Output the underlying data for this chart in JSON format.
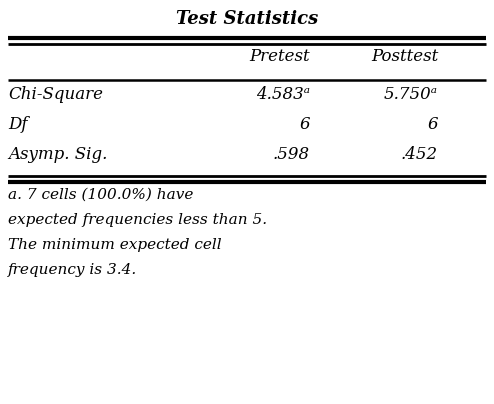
{
  "title": "Test Statistics",
  "col_headers": [
    "",
    "Pretest",
    "Posttest"
  ],
  "rows": [
    [
      "Chi-Square",
      "4.583ᵃ",
      "5.750ᵃ"
    ],
    [
      "Df",
      "6",
      "6"
    ],
    [
      "Asymp. Sig.",
      ".598",
      ".452"
    ]
  ],
  "footnote_lines": [
    "a. 7 cells (100.0%) have",
    "expected frequencies less than 5.",
    "The minimum expected cell",
    "frequency is 3.4."
  ],
  "bg_color": "#ffffff",
  "text_color": "#000000",
  "title_fontsize": 13,
  "header_fontsize": 12,
  "cell_fontsize": 12,
  "footnote_fontsize": 11
}
